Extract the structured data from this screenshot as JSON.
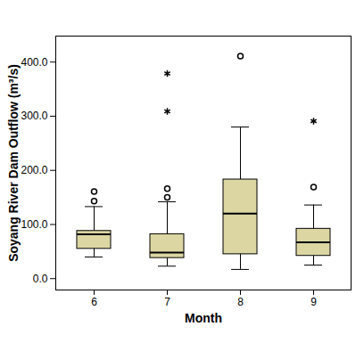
{
  "chart_data": {
    "type": "box",
    "x_label": "Month",
    "y_label": "Soyang River Dam Outflow (m³/s)",
    "categories": [
      "6",
      "7",
      "8",
      "9"
    ],
    "color": "#dcd6a3",
    "boxes": [
      {
        "whisker_low": 40,
        "q1": 55,
        "median": 82,
        "q3": 88,
        "whisker_high": 133,
        "outliers": [
          143,
          161
        ],
        "extremes": []
      },
      {
        "whisker_low": 23,
        "q1": 38,
        "median": 48,
        "q3": 82,
        "whisker_high": 142,
        "outliers": [
          150,
          166
        ],
        "extremes": [
          309,
          379
        ]
      },
      {
        "whisker_low": 17,
        "q1": 45,
        "median": 120,
        "q3": 183,
        "whisker_high": 280,
        "outliers": [
          411
        ],
        "extremes": []
      },
      {
        "whisker_low": 25,
        "q1": 42,
        "median": 67,
        "q3": 92,
        "whisker_high": 136,
        "outliers": [
          169
        ],
        "extremes": [
          291
        ]
      }
    ],
    "ylim": [
      -21,
      448
    ],
    "yticks": [
      {
        "value": 0,
        "label": "0.0"
      },
      {
        "value": 100,
        "label": "100.0"
      },
      {
        "value": 200,
        "label": "200.0"
      },
      {
        "value": 300,
        "label": "300.0"
      },
      {
        "value": 400,
        "label": "400.0"
      }
    ]
  }
}
